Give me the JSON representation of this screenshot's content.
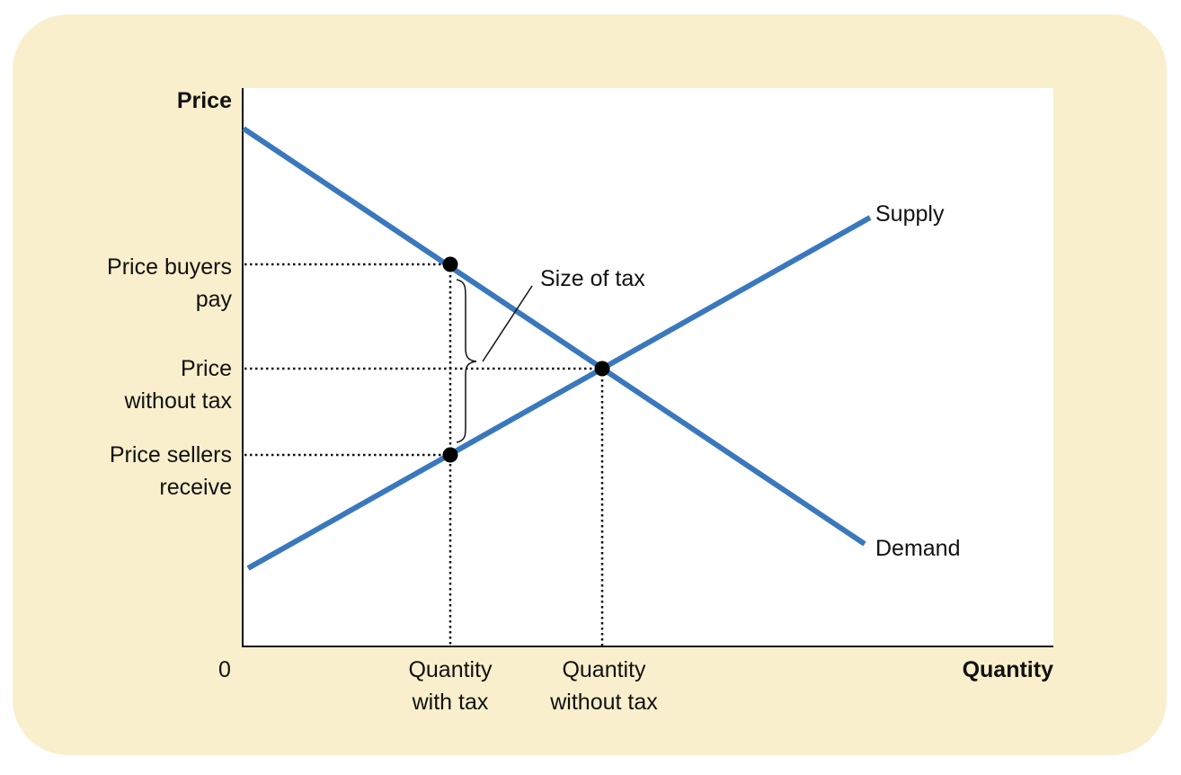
{
  "axes": {
    "y_label": "Price",
    "x_label": "Quantity",
    "origin_label": "0"
  },
  "curves": {
    "supply_label": "Supply",
    "demand_label": "Demand",
    "line_color": "#3a78bd"
  },
  "y_ticks": {
    "buyers": [
      "Price buyers",
      "pay"
    ],
    "no_tax": [
      "Price",
      "without tax"
    ],
    "sellers": [
      "Price sellers",
      "receive"
    ]
  },
  "x_ticks": {
    "with_tax": [
      "Quantity",
      "with tax"
    ],
    "without_tax": [
      "Quantity",
      "without tax"
    ]
  },
  "annotation": {
    "tax_label": "Size of tax"
  }
}
